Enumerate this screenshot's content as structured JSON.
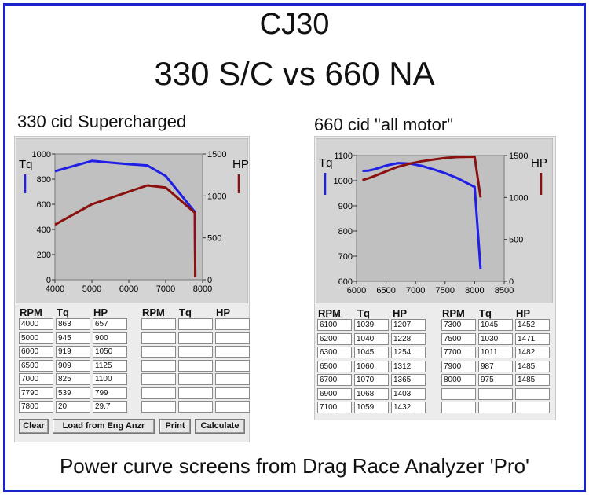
{
  "page": {
    "title_line1": "CJ30",
    "title_line2": "330 S/C vs 660 NA",
    "caption": "Power curve screens from Drag Race Analyzer 'Pro'"
  },
  "left": {
    "subtitle": "330 cid Supercharged",
    "table_headers": [
      "RPM",
      "Tq",
      "HP",
      "RPM",
      "Tq",
      "HP"
    ],
    "rows": [
      [
        "4000",
        "863",
        "657"
      ],
      [
        "5000",
        "945",
        "900"
      ],
      [
        "6000",
        "919",
        "1050"
      ],
      [
        "6500",
        "909",
        "1125"
      ],
      [
        "7000",
        "825",
        "1100"
      ],
      [
        "7790",
        "539",
        "799"
      ],
      [
        "7800",
        "20",
        "29.7"
      ]
    ],
    "buttons": {
      "clear": "Clear",
      "load": "Load from Eng Anzr",
      "print": "Print",
      "calculate": "Calculate"
    }
  },
  "right": {
    "subtitle": "660 cid \"all motor\"",
    "table_headers": [
      "RPM",
      "Tq",
      "HP",
      "RPM",
      "Tq",
      "HP"
    ],
    "rows_a": [
      [
        "6100",
        "1039",
        "1207"
      ],
      [
        "6200",
        "1040",
        "1228"
      ],
      [
        "6300",
        "1045",
        "1254"
      ],
      [
        "6500",
        "1060",
        "1312"
      ],
      [
        "6700",
        "1070",
        "1365"
      ],
      [
        "6900",
        "1068",
        "1403"
      ],
      [
        "7100",
        "1059",
        "1432"
      ]
    ],
    "rows_b": [
      [
        "7300",
        "1045",
        "1452"
      ],
      [
        "7500",
        "1030",
        "1471"
      ],
      [
        "7700",
        "1011",
        "1482"
      ],
      [
        "7900",
        "987",
        "1485"
      ],
      [
        "8000",
        "975",
        "1485"
      ]
    ]
  },
  "chart_data": [
    {
      "type": "line",
      "subtitle": "330 cid Supercharged",
      "left_axis_label": "Tq",
      "right_axis_label": "HP",
      "xlim": [
        4000,
        8000
      ],
      "x_ticks": [
        "4000",
        "5000",
        "6000",
        "7000",
        "8000"
      ],
      "ylim_left": [
        0,
        1000
      ],
      "y_ticks_left": [
        "0",
        "200",
        "400",
        "600",
        "800",
        "1000"
      ],
      "ylim_right": [
        0,
        1500
      ],
      "y_ticks_right": [
        "0",
        "500",
        "1000",
        "1500"
      ],
      "grid": false,
      "series": [
        {
          "name": "Tq",
          "axis": "left",
          "color": "#1f1fe6",
          "x": [
            4000,
            5000,
            6000,
            6500,
            7000,
            7790,
            7800
          ],
          "y": [
            863,
            945,
            919,
            909,
            825,
            539,
            20
          ]
        },
        {
          "name": "HP",
          "axis": "right",
          "color": "#8b1010",
          "x": [
            4000,
            5000,
            6000,
            6500,
            7000,
            7790,
            7800
          ],
          "y": [
            657,
            900,
            1050,
            1125,
            1100,
            799,
            29.7
          ]
        }
      ]
    },
    {
      "type": "line",
      "subtitle": "660 cid \"all motor\"",
      "left_axis_label": "Tq",
      "right_axis_label": "HP",
      "xlim": [
        6000,
        8500
      ],
      "x_ticks": [
        "6000",
        "6500",
        "7000",
        "7500",
        "8000",
        "8500"
      ],
      "ylim_left": [
        600,
        1100
      ],
      "y_ticks_left": [
        "600",
        "700",
        "800",
        "900",
        "1000",
        "1100"
      ],
      "ylim_right": [
        0,
        1500
      ],
      "y_ticks_right": [
        "0",
        "500",
        "1000",
        "1500"
      ],
      "grid": false,
      "series": [
        {
          "name": "Tq",
          "axis": "left",
          "color": "#1f1fe6",
          "x": [
            6100,
            6200,
            6300,
            6500,
            6700,
            6900,
            7100,
            7300,
            7500,
            7700,
            7900,
            8000,
            8100
          ],
          "y": [
            1039,
            1040,
            1045,
            1060,
            1070,
            1068,
            1059,
            1045,
            1030,
            1011,
            987,
            975,
            650
          ]
        },
        {
          "name": "HP",
          "axis": "right",
          "color": "#8b1010",
          "x": [
            6100,
            6200,
            6300,
            6500,
            6700,
            6900,
            7100,
            7300,
            7500,
            7700,
            7900,
            8000,
            8100
          ],
          "y": [
            1207,
            1228,
            1254,
            1312,
            1365,
            1403,
            1432,
            1452,
            1471,
            1482,
            1485,
            1485,
            1000
          ]
        }
      ]
    }
  ]
}
